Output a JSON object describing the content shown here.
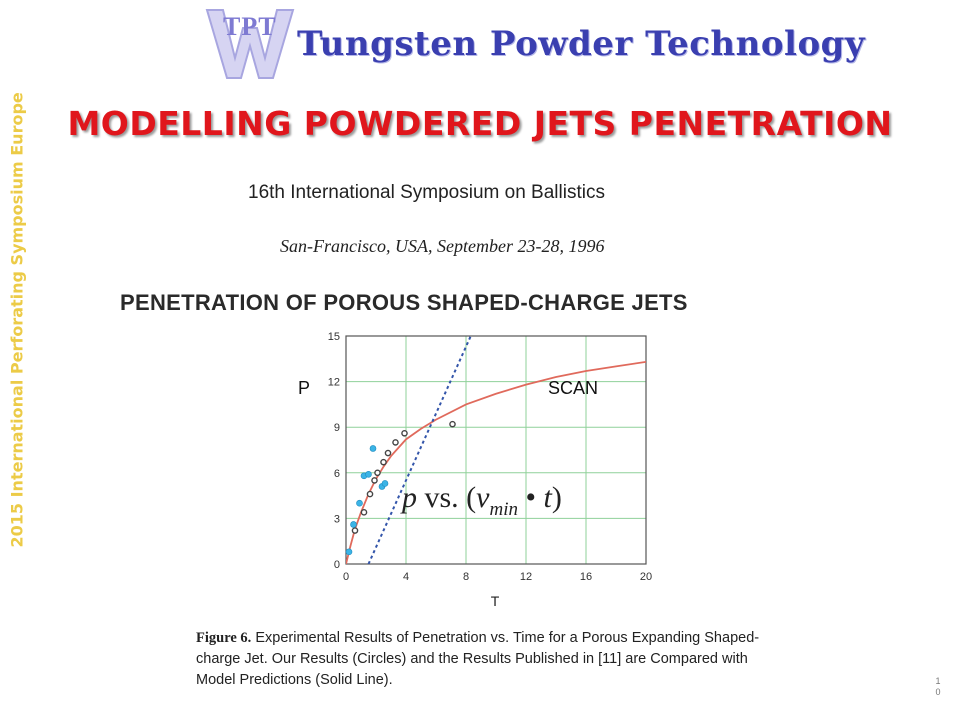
{
  "header": {
    "logo_mark": "TPT",
    "logo_text": "Tungsten Powder Technology"
  },
  "slide": {
    "title": "MODELLING POWDERED JETS PENETRATION",
    "side_text": "2015 International Perforating Symposium Europe",
    "slide_number": "10"
  },
  "paper": {
    "conference": "16th International Symposium on Ballistics",
    "location": "San-Francisco, USA, September 23-28, 1996",
    "title": "PENETRATION OF POROUS SHAPED-CHARGE JETS",
    "caption_label": "Figure 6.",
    "caption_text": "Experimental Results of Penetration vs. Time for a Porous Expanding Shaped-charge Jet. Our Results (Circles) and the Results Published in [11] are Compared with Model Predictions (Solid Line)."
  },
  "overlay": {
    "left_label": "P",
    "right_label": "SCAN"
  },
  "colors": {
    "title_red": "#e0161c",
    "side_text_yellow": "#eccb47",
    "logo_blue": "#3a3fb0",
    "grid_green": "#8fd19a",
    "model_line": "#e06a5c",
    "dashed_line": "#3355aa",
    "blue_points": "#3bb4e6",
    "open_points": "#444444"
  },
  "chart_data": {
    "type": "scatter",
    "xlabel": "T",
    "ylabel": "",
    "xlim": [
      0,
      20
    ],
    "ylim": [
      0,
      15
    ],
    "xticks": [
      0,
      4,
      8,
      12,
      16,
      20
    ],
    "yticks": [
      0,
      3,
      6,
      9,
      12,
      15
    ],
    "grid": true,
    "annotation": "p vs. (v_min • t)",
    "series": [
      {
        "style": "solid-line",
        "x": [
          0,
          0.3,
          0.6,
          1.0,
          1.5,
          2.0,
          2.5,
          3.0,
          4.0,
          5.0,
          6.0,
          8.0,
          10.0,
          12.0,
          14.0,
          16.0,
          18.0,
          20.0
        ],
        "y": [
          0,
          1.2,
          2.3,
          3.4,
          4.6,
          5.6,
          6.4,
          7.1,
          8.2,
          8.9,
          9.5,
          10.5,
          11.2,
          11.8,
          12.3,
          12.7,
          13.0,
          13.3
        ]
      },
      {
        "style": "dashed-line",
        "x": [
          1.5,
          3.0,
          5.0,
          7.0,
          8.5
        ],
        "y": [
          0,
          3.3,
          7.7,
          12.1,
          15.4
        ]
      },
      {
        "style": "open-circles",
        "x": [
          0.6,
          1.2,
          1.6,
          1.9,
          2.1,
          2.5,
          2.8,
          3.3,
          3.9,
          7.1
        ],
        "y": [
          2.2,
          3.4,
          4.6,
          5.5,
          6.0,
          6.7,
          7.3,
          8.0,
          8.6,
          9.2
        ]
      },
      {
        "style": "filled-circles",
        "x": [
          0.2,
          0.5,
          0.9,
          1.2,
          1.5,
          1.8,
          2.4,
          2.6
        ],
        "y": [
          0.8,
          2.6,
          4.0,
          5.8,
          5.9,
          7.6,
          5.1,
          5.3
        ]
      }
    ]
  }
}
